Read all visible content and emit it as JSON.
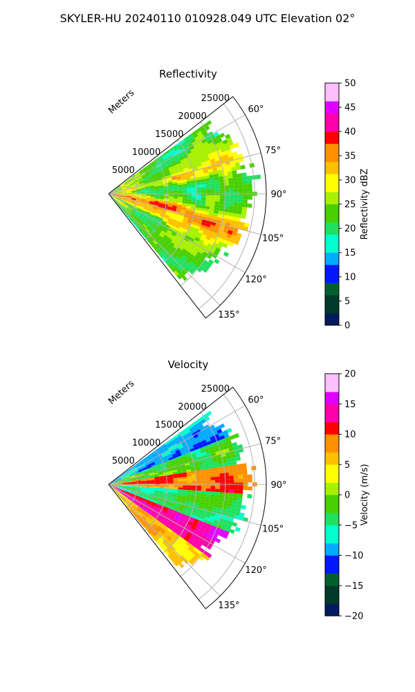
{
  "figure_title": "SKYLER-HU  20240110  010928.049 UTC Elevation 02°",
  "chart_data": [
    {
      "type": "heatmap",
      "projection": "polar-sector",
      "title": "Reflectivity",
      "theta_range_deg": [
        52,
        142
      ],
      "theta_ticks": [
        "60°",
        "75°",
        "90°",
        "105°",
        "120°",
        "135°"
      ],
      "r_ticks": [
        "5000",
        "10000",
        "15000",
        "20000",
        "25000"
      ],
      "r_label": "Meters",
      "r_range_m": [
        0,
        27000
      ],
      "colorbar": {
        "label": "Reflectivity dBZ",
        "range": [
          0,
          50
        ],
        "ticks": [
          "0",
          "5",
          "10",
          "15",
          "20",
          "25",
          "30",
          "35",
          "40",
          "45",
          "50"
        ],
        "colors": [
          "#001a5e",
          "#003a28",
          "#006030",
          "#0018ff",
          "#00aaff",
          "#00ffcc",
          "#20e060",
          "#48d000",
          "#a8f000",
          "#ffff00",
          "#ffc000",
          "#ff9000",
          "#ff0000",
          "#ff00aa",
          "#e000ff",
          "#ffc0ff"
        ]
      }
    },
    {
      "type": "heatmap",
      "projection": "polar-sector",
      "title": "Velocity",
      "theta_range_deg": [
        52,
        142
      ],
      "theta_ticks": [
        "60°",
        "75°",
        "90°",
        "105°",
        "120°",
        "135°"
      ],
      "r_ticks": [
        "5000",
        "10000",
        "15000",
        "20000",
        "25000"
      ],
      "r_label": "Meters",
      "r_range_m": [
        0,
        27000
      ],
      "colorbar": {
        "label": "Velocity (m/s)",
        "range": [
          -20,
          20
        ],
        "ticks": [
          "−20",
          "−15",
          "−10",
          "−5",
          "0",
          "5",
          "10",
          "15",
          "20"
        ],
        "colors": [
          "#001a5e",
          "#003a28",
          "#006030",
          "#0018ff",
          "#00aaff",
          "#00ffcc",
          "#20e060",
          "#48d000",
          "#a8f000",
          "#ffff00",
          "#ffc000",
          "#ff9000",
          "#ff0000",
          "#ff00aa",
          "#e000ff",
          "#ffc0ff"
        ]
      }
    }
  ]
}
